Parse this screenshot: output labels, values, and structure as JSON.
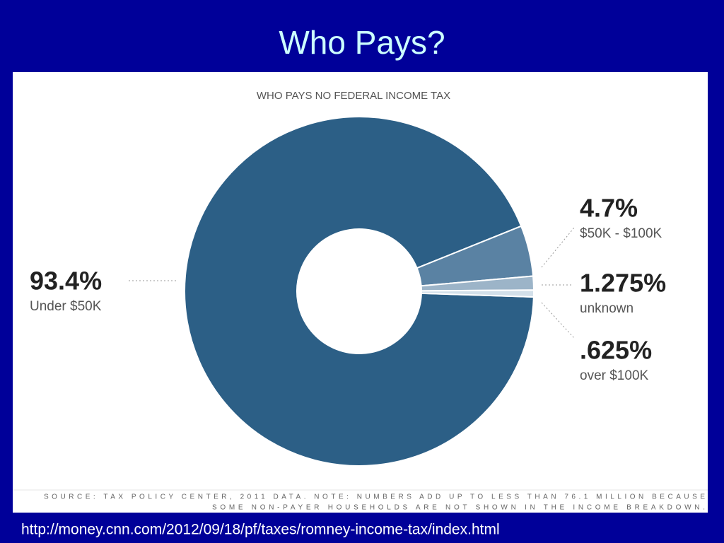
{
  "slide_title": "Who Pays?",
  "url": "http://money.cnn.com/2012/09/18/pf/taxes/romney-income-tax/index.html",
  "chart_data": {
    "type": "donut",
    "title": "WHO PAYS NO FEDERAL INCOME TAX",
    "categories": [
      "Under $50K",
      "$50K - $100K",
      "unknown",
      "over $100K"
    ],
    "values": [
      93.4,
      4.7,
      1.275,
      0.625
    ],
    "value_labels": [
      "93.4%",
      "4.7%",
      "1.275%",
      ".625%"
    ],
    "colors": [
      "#2c5f86",
      "#5a82a3",
      "#9cb4c8",
      "#d3e0ea"
    ],
    "source": [
      "SOURCE: TAX POLICY CENTER, 2011 DATA. NOTE: NUMBERS ADD UP TO LESS THAN 76.1 MILLION BECAUSE",
      "SOME NON-PAYER HOUSEHOLDS ARE NOT SHOWN IN THE INCOME BREAKDOWN."
    ]
  }
}
